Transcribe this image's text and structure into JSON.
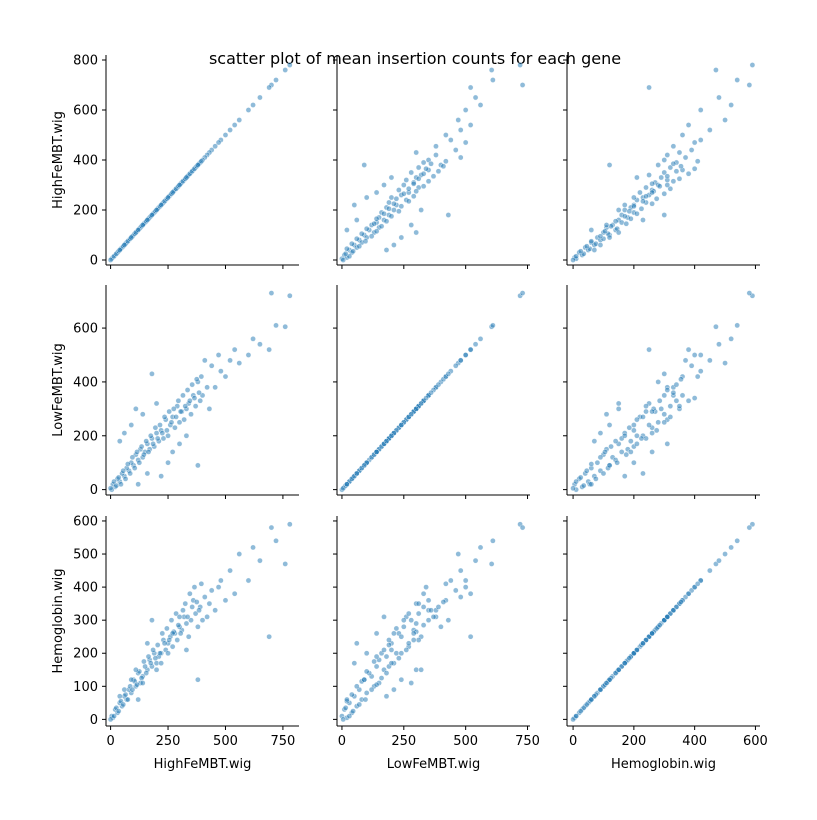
{
  "chart_data": {
    "type": "scatter",
    "title": "scatter plot of mean insertion counts for each gene",
    "variables": [
      "HighFeMBT.wig",
      "LowFeMBT.wig",
      "Hemoglobin.wig"
    ],
    "limits": {
      "HighFeMBT.wig": [
        -20,
        820
      ],
      "LowFeMBT.wig": [
        -20,
        760
      ],
      "Hemoglobin.wig": [
        -20,
        615
      ]
    },
    "ticks": {
      "HighFeMBT.wig": [
        0,
        250,
        500,
        750
      ],
      "LowFeMBT.wig": [
        0,
        250,
        500,
        750
      ],
      "Hemoglobin.wig": [
        0,
        200,
        400,
        600
      ]
    },
    "y_ticks": {
      "HighFeMBT.wig": [
        0,
        200,
        400,
        600,
        800
      ],
      "LowFeMBT.wig": [
        0,
        200,
        400,
        600
      ],
      "Hemoglobin.wig": [
        0,
        100,
        200,
        300,
        400,
        500,
        600
      ]
    },
    "marker_color": "#1f77b4",
    "marker_alpha": 0.5,
    "genes": [
      [
        780,
        720,
        590
      ],
      [
        760,
        605,
        470
      ],
      [
        720,
        610,
        540
      ],
      [
        700,
        730,
        580
      ],
      [
        690,
        520,
        250
      ],
      [
        650,
        540,
        480
      ],
      [
        620,
        560,
        520
      ],
      [
        600,
        500,
        420
      ],
      [
        560,
        470,
        500
      ],
      [
        540,
        520,
        380
      ],
      [
        520,
        480,
        450
      ],
      [
        500,
        420,
        360
      ],
      [
        480,
        440,
        420
      ],
      [
        470,
        500,
        400
      ],
      [
        455,
        380,
        330
      ],
      [
        440,
        460,
        390
      ],
      [
        430,
        300,
        350
      ],
      [
        420,
        380,
        310
      ],
      [
        410,
        480,
        370
      ],
      [
        400,
        350,
        300
      ],
      [
        390,
        330,
        340
      ],
      [
        380,
        400,
        280
      ],
      [
        370,
        310,
        320
      ],
      [
        360,
        350,
        360
      ],
      [
        350,
        280,
        300
      ],
      [
        340,
        320,
        250
      ],
      [
        330,
        300,
        290
      ],
      [
        320,
        260,
        310
      ],
      [
        310,
        290,
        270
      ],
      [
        300,
        250,
        280
      ],
      [
        290,
        310,
        240
      ],
      [
        280,
        230,
        260
      ],
      [
        270,
        270,
        220
      ],
      [
        260,
        240,
        250
      ],
      [
        250,
        200,
        230
      ],
      [
        240,
        260,
        210
      ],
      [
        230,
        190,
        240
      ],
      [
        220,
        220,
        200
      ],
      [
        210,
        180,
        190
      ],
      [
        200,
        210,
        170
      ],
      [
        190,
        160,
        200
      ],
      [
        180,
        190,
        160
      ],
      [
        170,
        150,
        180
      ],
      [
        160,
        170,
        150
      ],
      [
        150,
        140,
        160
      ],
      [
        140,
        120,
        130
      ],
      [
        130,
        150,
        110
      ],
      [
        120,
        110,
        140
      ],
      [
        110,
        130,
        100
      ],
      [
        100,
        90,
        120
      ],
      [
        90,
        100,
        80
      ],
      [
        80,
        70,
        90
      ],
      [
        70,
        80,
        60
      ],
      [
        60,
        50,
        70
      ],
      [
        50,
        60,
        40
      ],
      [
        40,
        30,
        50
      ],
      [
        30,
        40,
        20
      ],
      [
        20,
        10,
        30
      ],
      [
        10,
        20,
        5
      ],
      [
        5,
        0,
        10
      ],
      [
        0,
        5,
        0
      ],
      [
        15,
        30,
        10
      ],
      [
        25,
        15,
        35
      ],
      [
        35,
        45,
        25
      ],
      [
        45,
        20,
        55
      ],
      [
        55,
        70,
        45
      ],
      [
        65,
        40,
        75
      ],
      [
        75,
        95,
        60
      ],
      [
        85,
        60,
        100
      ],
      [
        95,
        120,
        90
      ],
      [
        105,
        80,
        115
      ],
      [
        115,
        140,
        105
      ],
      [
        125,
        100,
        145
      ],
      [
        135,
        160,
        125
      ],
      [
        145,
        130,
        175
      ],
      [
        155,
        180,
        140
      ],
      [
        165,
        140,
        190
      ],
      [
        175,
        200,
        170
      ],
      [
        185,
        170,
        210
      ],
      [
        195,
        230,
        185
      ],
      [
        205,
        190,
        225
      ],
      [
        215,
        240,
        200
      ],
      [
        225,
        210,
        260
      ],
      [
        235,
        270,
        230
      ],
      [
        245,
        220,
        275
      ],
      [
        255,
        290,
        240
      ],
      [
        265,
        250,
        300
      ],
      [
        275,
        300,
        265
      ],
      [
        285,
        270,
        320
      ],
      [
        295,
        330,
        285
      ],
      [
        305,
        290,
        260
      ],
      [
        315,
        350,
        330
      ],
      [
        325,
        310,
        350
      ],
      [
        335,
        370,
        310
      ],
      [
        345,
        330,
        380
      ],
      [
        355,
        390,
        340
      ],
      [
        365,
        340,
        400
      ],
      [
        375,
        410,
        355
      ],
      [
        385,
        360,
        330
      ],
      [
        395,
        420,
        410
      ],
      [
        180,
        430,
        300
      ],
      [
        250,
        100,
        200
      ],
      [
        90,
        240,
        120
      ],
      [
        300,
        170,
        310
      ],
      [
        380,
        90,
        120
      ],
      [
        140,
        280,
        110
      ],
      [
        220,
        50,
        170
      ],
      [
        60,
        210,
        90
      ],
      [
        270,
        140,
        260
      ],
      [
        110,
        300,
        150
      ],
      [
        330,
        200,
        210
      ],
      [
        200,
        320,
        150
      ],
      [
        160,
        60,
        230
      ],
      [
        40,
        180,
        70
      ],
      [
        120,
        20,
        60
      ]
    ]
  }
}
